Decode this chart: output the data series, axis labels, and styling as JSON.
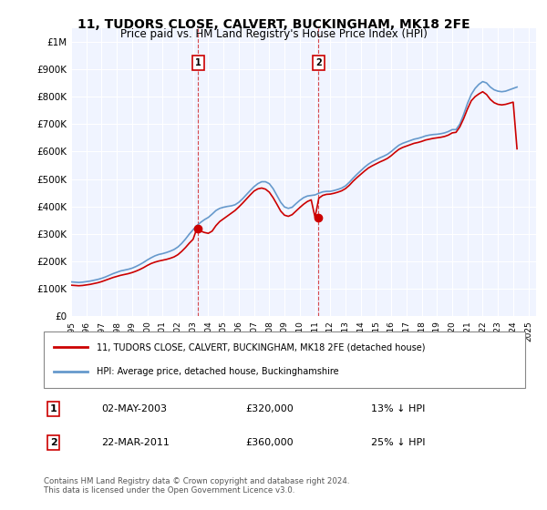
{
  "title_line1": "11, TUDORS CLOSE, CALVERT, BUCKINGHAM, MK18 2FE",
  "title_line2": "Price paid vs. HM Land Registry's House Price Index (HPI)",
  "ylabel_ticks": [
    "£0",
    "£100K",
    "£200K",
    "£300K",
    "£400K",
    "£500K",
    "£600K",
    "£700K",
    "£800K",
    "£900K",
    "£1M"
  ],
  "ytick_values": [
    0,
    100000,
    200000,
    300000,
    400000,
    500000,
    600000,
    700000,
    800000,
    900000,
    1000000
  ],
  "ylim": [
    0,
    1050000
  ],
  "xlim_start": 1995.0,
  "xlim_end": 2025.5,
  "xtick_years": [
    1995,
    1996,
    1997,
    1998,
    1999,
    2000,
    2001,
    2002,
    2003,
    2004,
    2005,
    2006,
    2007,
    2008,
    2009,
    2010,
    2011,
    2012,
    2013,
    2014,
    2015,
    2016,
    2017,
    2018,
    2019,
    2020,
    2021,
    2022,
    2023,
    2024,
    2025
  ],
  "background_color": "#ffffff",
  "plot_bg_color": "#f0f4ff",
  "grid_color": "#ffffff",
  "hpi_color": "#6699cc",
  "price_color": "#cc0000",
  "transaction1": {
    "date_num": 2003.33,
    "price": 320000,
    "label": "1"
  },
  "transaction2": {
    "date_num": 2011.22,
    "price": 360000,
    "label": "2"
  },
  "legend_property": "11, TUDORS CLOSE, CALVERT, BUCKINGHAM, MK18 2FE (detached house)",
  "legend_hpi": "HPI: Average price, detached house, Buckinghamshire",
  "annotation1_date": "02-MAY-2003",
  "annotation1_price": "£320,000",
  "annotation1_pct": "13% ↓ HPI",
  "annotation2_date": "22-MAR-2011",
  "annotation2_price": "£360,000",
  "annotation2_pct": "25% ↓ HPI",
  "footer": "Contains HM Land Registry data © Crown copyright and database right 2024.\nThis data is licensed under the Open Government Licence v3.0.",
  "hpi_data_x": [
    1995.0,
    1995.25,
    1995.5,
    1995.75,
    1996.0,
    1996.25,
    1996.5,
    1996.75,
    1997.0,
    1997.25,
    1997.5,
    1997.75,
    1998.0,
    1998.25,
    1998.5,
    1998.75,
    1999.0,
    1999.25,
    1999.5,
    1999.75,
    2000.0,
    2000.25,
    2000.5,
    2000.75,
    2001.0,
    2001.25,
    2001.5,
    2001.75,
    2002.0,
    2002.25,
    2002.5,
    2002.75,
    2003.0,
    2003.25,
    2003.5,
    2003.75,
    2004.0,
    2004.25,
    2004.5,
    2004.75,
    2005.0,
    2005.25,
    2005.5,
    2005.75,
    2006.0,
    2006.25,
    2006.5,
    2006.75,
    2007.0,
    2007.25,
    2007.5,
    2007.75,
    2008.0,
    2008.25,
    2008.5,
    2008.75,
    2009.0,
    2009.25,
    2009.5,
    2009.75,
    2010.0,
    2010.25,
    2010.5,
    2010.75,
    2011.0,
    2011.25,
    2011.5,
    2011.75,
    2012.0,
    2012.25,
    2012.5,
    2012.75,
    2013.0,
    2013.25,
    2013.5,
    2013.75,
    2014.0,
    2014.25,
    2014.5,
    2014.75,
    2015.0,
    2015.25,
    2015.5,
    2015.75,
    2016.0,
    2016.25,
    2016.5,
    2016.75,
    2017.0,
    2017.25,
    2017.5,
    2017.75,
    2018.0,
    2018.25,
    2018.5,
    2018.75,
    2019.0,
    2019.25,
    2019.5,
    2019.75,
    2020.0,
    2020.25,
    2020.5,
    2020.75,
    2021.0,
    2021.25,
    2021.5,
    2021.75,
    2022.0,
    2022.25,
    2022.5,
    2022.75,
    2023.0,
    2023.25,
    2023.5,
    2023.75,
    2024.0,
    2024.25
  ],
  "hpi_data_y": [
    125000,
    124000,
    123000,
    124000,
    126000,
    128000,
    131000,
    134000,
    138000,
    143000,
    149000,
    155000,
    160000,
    165000,
    168000,
    171000,
    175000,
    181000,
    188000,
    196000,
    205000,
    213000,
    220000,
    225000,
    228000,
    232000,
    237000,
    243000,
    252000,
    265000,
    281000,
    299000,
    315000,
    330000,
    342000,
    352000,
    360000,
    372000,
    385000,
    393000,
    397000,
    400000,
    402000,
    406000,
    415000,
    428000,
    443000,
    458000,
    472000,
    483000,
    490000,
    490000,
    483000,
    465000,
    440000,
    415000,
    398000,
    393000,
    397000,
    410000,
    422000,
    432000,
    438000,
    440000,
    442000,
    448000,
    453000,
    455000,
    455000,
    458000,
    462000,
    467000,
    475000,
    488000,
    503000,
    517000,
    530000,
    543000,
    554000,
    563000,
    570000,
    577000,
    583000,
    590000,
    600000,
    612000,
    623000,
    630000,
    635000,
    640000,
    645000,
    648000,
    652000,
    657000,
    660000,
    662000,
    663000,
    665000,
    668000,
    673000,
    680000,
    680000,
    700000,
    735000,
    775000,
    808000,
    830000,
    845000,
    855000,
    850000,
    835000,
    825000,
    820000,
    818000,
    820000,
    825000,
    830000,
    835000
  ],
  "price_data_x": [
    1995.0,
    1995.25,
    1995.5,
    1995.75,
    1996.0,
    1996.25,
    1996.5,
    1996.75,
    1997.0,
    1997.25,
    1997.5,
    1997.75,
    1998.0,
    1998.25,
    1998.5,
    1998.75,
    1999.0,
    1999.25,
    1999.5,
    1999.75,
    2000.0,
    2000.25,
    2000.5,
    2000.75,
    2001.0,
    2001.25,
    2001.5,
    2001.75,
    2002.0,
    2002.25,
    2002.5,
    2002.75,
    2003.0,
    2003.25,
    2003.5,
    2003.75,
    2004.0,
    2004.25,
    2004.5,
    2004.75,
    2005.0,
    2005.25,
    2005.5,
    2005.75,
    2006.0,
    2006.25,
    2006.5,
    2006.75,
    2007.0,
    2007.25,
    2007.5,
    2007.75,
    2008.0,
    2008.25,
    2008.5,
    2008.75,
    2009.0,
    2009.25,
    2009.5,
    2009.75,
    2010.0,
    2010.25,
    2010.5,
    2010.75,
    2011.0,
    2011.25,
    2011.5,
    2011.75,
    2012.0,
    2012.25,
    2012.5,
    2012.75,
    2013.0,
    2013.25,
    2013.5,
    2013.75,
    2014.0,
    2014.25,
    2014.5,
    2014.75,
    2015.0,
    2015.25,
    2015.5,
    2015.75,
    2016.0,
    2016.25,
    2016.5,
    2016.75,
    2017.0,
    2017.25,
    2017.5,
    2017.75,
    2018.0,
    2018.25,
    2018.5,
    2018.75,
    2019.0,
    2019.25,
    2019.5,
    2019.75,
    2020.0,
    2020.25,
    2020.5,
    2020.75,
    2021.0,
    2021.25,
    2021.5,
    2021.75,
    2022.0,
    2022.25,
    2022.5,
    2022.75,
    2023.0,
    2023.25,
    2023.5,
    2023.75,
    2024.0,
    2024.25
  ],
  "price_data_y": [
    113000,
    112000,
    111000,
    112000,
    114000,
    116000,
    119000,
    122000,
    126000,
    131000,
    136000,
    141000,
    145000,
    149000,
    152000,
    155000,
    159000,
    164000,
    170000,
    177000,
    185000,
    192000,
    197000,
    201000,
    204000,
    207000,
    211000,
    216000,
    224000,
    236000,
    250000,
    266000,
    280000,
    320000,
    310000,
    305000,
    302000,
    310000,
    330000,
    345000,
    355000,
    365000,
    375000,
    385000,
    398000,
    412000,
    427000,
    442000,
    456000,
    464000,
    467000,
    463000,
    452000,
    432000,
    408000,
    383000,
    368000,
    364000,
    370000,
    383000,
    396000,
    408000,
    418000,
    424000,
    360000,
    430000,
    440000,
    444000,
    445000,
    448000,
    452000,
    457000,
    465000,
    477000,
    492000,
    505000,
    517000,
    529000,
    540000,
    548000,
    555000,
    562000,
    568000,
    575000,
    585000,
    597000,
    608000,
    615000,
    620000,
    625000,
    630000,
    633000,
    637000,
    642000,
    645000,
    648000,
    650000,
    652000,
    655000,
    660000,
    668000,
    670000,
    690000,
    720000,
    755000,
    785000,
    800000,
    810000,
    818000,
    808000,
    790000,
    778000,
    772000,
    770000,
    772000,
    776000,
    780000,
    610000
  ]
}
